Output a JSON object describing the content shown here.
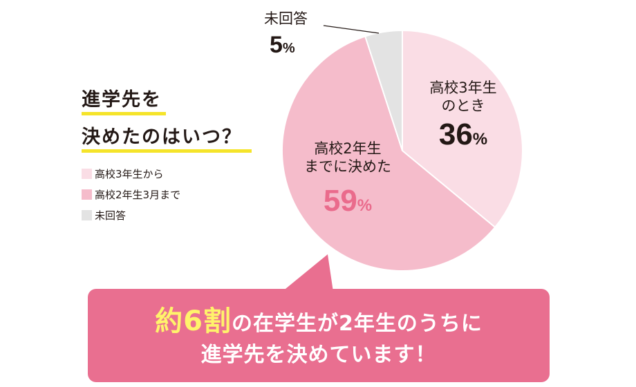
{
  "colors": {
    "slice_3rd_year": "#fadde5",
    "slice_2nd_year": "#f5bccb",
    "slice_no_answer": "#e3e3e3",
    "accent_pink": "#e96f90",
    "pct_pink": "#ea6b8c",
    "highlight_yellow": "#fff36b",
    "underline_yellow": "#f5e42a"
  },
  "title": {
    "line1": "進学先を",
    "line2": "決めたのはいつ？"
  },
  "legend": [
    {
      "label": "高校3年生から",
      "color": "#fadde5"
    },
    {
      "label": "高校2年生3月まで",
      "color": "#f5bccb"
    },
    {
      "label": "未回答",
      "color": "#e3e3e3"
    }
  ],
  "chart_data": {
    "type": "pie",
    "title": "進学先を決めたのはいつ？",
    "start": "12 o'clock, clockwise",
    "slices": [
      {
        "label_lines": [
          "高校3年生",
          "のとき"
        ],
        "value": 36,
        "value_text": "36",
        "unit": "%",
        "color": "#fadde5"
      },
      {
        "label_lines": [
          "高校2年生",
          "までに決めた"
        ],
        "value": 59,
        "value_text": "59",
        "unit": "%",
        "color": "#f5bccb"
      },
      {
        "label_lines": [
          "未回答"
        ],
        "value": 5,
        "value_text": "5",
        "unit": "%",
        "color": "#e3e3e3"
      }
    ],
    "legend_position": "left"
  },
  "banner": {
    "highlight": "約6割",
    "line1_rest": "の在学生が2年生のうちに",
    "line2": "進学先を決めています！"
  }
}
